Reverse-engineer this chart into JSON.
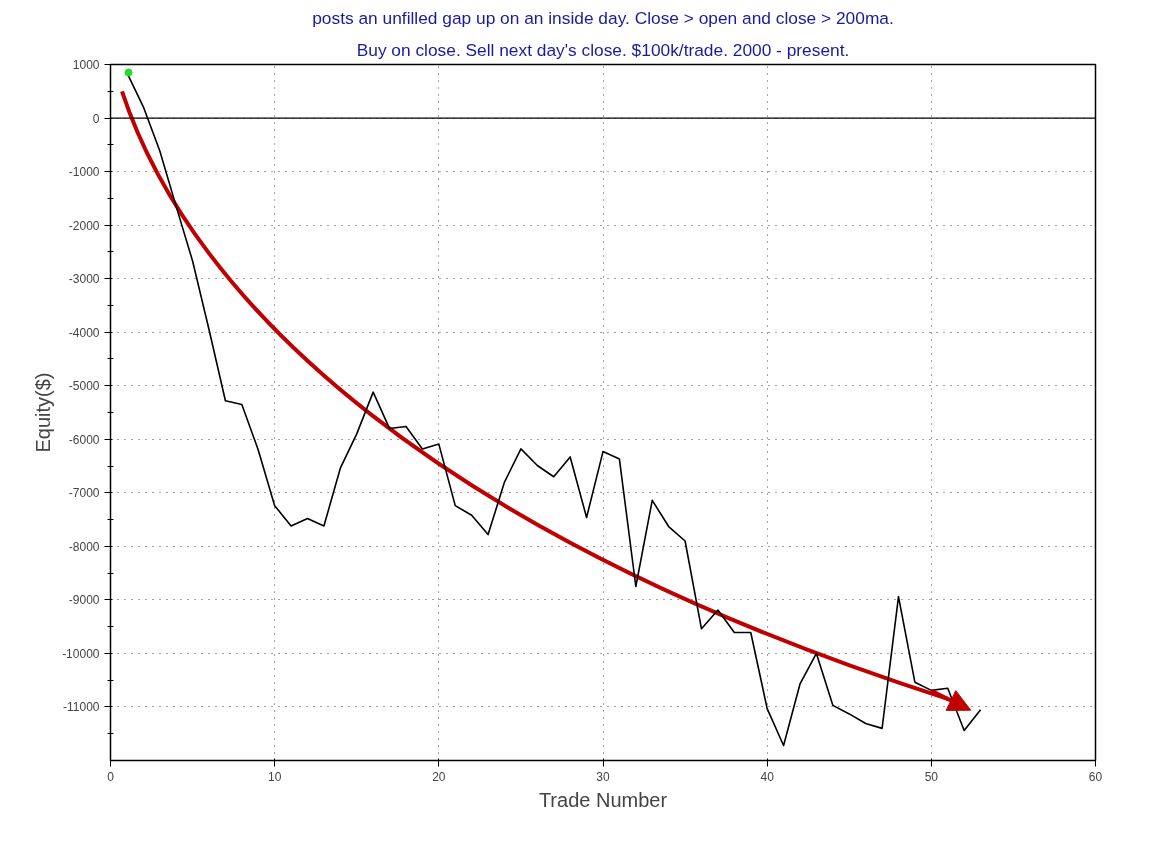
{
  "chart_data": {
    "type": "line",
    "title": "posts an unfilled gap up on an inside day. Close > open and close > 200ma.",
    "subtitle": "Buy on close. Sell next day's close. $100k/trade. 2000 - present.",
    "xlabel": "Trade Number",
    "ylabel": "Equity($)",
    "xlim": [
      0,
      60
    ],
    "xticks": [
      0,
      10,
      20,
      30,
      40,
      50,
      60
    ],
    "ylim": [
      -12000,
      1000
    ],
    "yticks": [
      1000,
      0,
      -1000,
      -2000,
      -3000,
      -4000,
      -5000,
      -6000,
      -7000,
      -8000,
      -9000,
      -10000,
      -11000
    ],
    "grid": true,
    "line_style": "solid",
    "marker": "none",
    "ref_lines": [
      {
        "axis": "y",
        "value": 0,
        "color": "#000000"
      }
    ],
    "series": [
      {
        "color": "#000000",
        "x": [
          1,
          2,
          3,
          4,
          5,
          6,
          7,
          8,
          9,
          10,
          11,
          12,
          13,
          14,
          15,
          16,
          17,
          18,
          19,
          20,
          21,
          22,
          23,
          24,
          25,
          26,
          27,
          28,
          29,
          30,
          31,
          32,
          33,
          34,
          35,
          36,
          37,
          38,
          39,
          40,
          41,
          42,
          43,
          44,
          45,
          46,
          47,
          48,
          49,
          50,
          51,
          52,
          53
        ],
        "values": [
          850,
          210,
          -610,
          -1650,
          -2670,
          -3950,
          -5280,
          -5350,
          -6200,
          -7240,
          -7620,
          -7480,
          -7620,
          -6540,
          -5900,
          -5120,
          -5800,
          -5760,
          -6180,
          -6090,
          -7240,
          -7420,
          -7780,
          -6800,
          -6180,
          -6490,
          -6700,
          -6330,
          -7460,
          -6230,
          -6370,
          -8750,
          -7140,
          -7630,
          -7900,
          -9540,
          -9190,
          -9610,
          -9610,
          -11030,
          -11720,
          -10570,
          -10000,
          -10970,
          -11130,
          -11310,
          -11400,
          -8940,
          -10540,
          -10690,
          -10650,
          -11440,
          -11050
        ]
      },
      {
        "type": "scatter",
        "color": "#22dd22",
        "marker": "circle",
        "x": [
          1.1
        ],
        "values": [
          850
        ]
      }
    ]
  }
}
